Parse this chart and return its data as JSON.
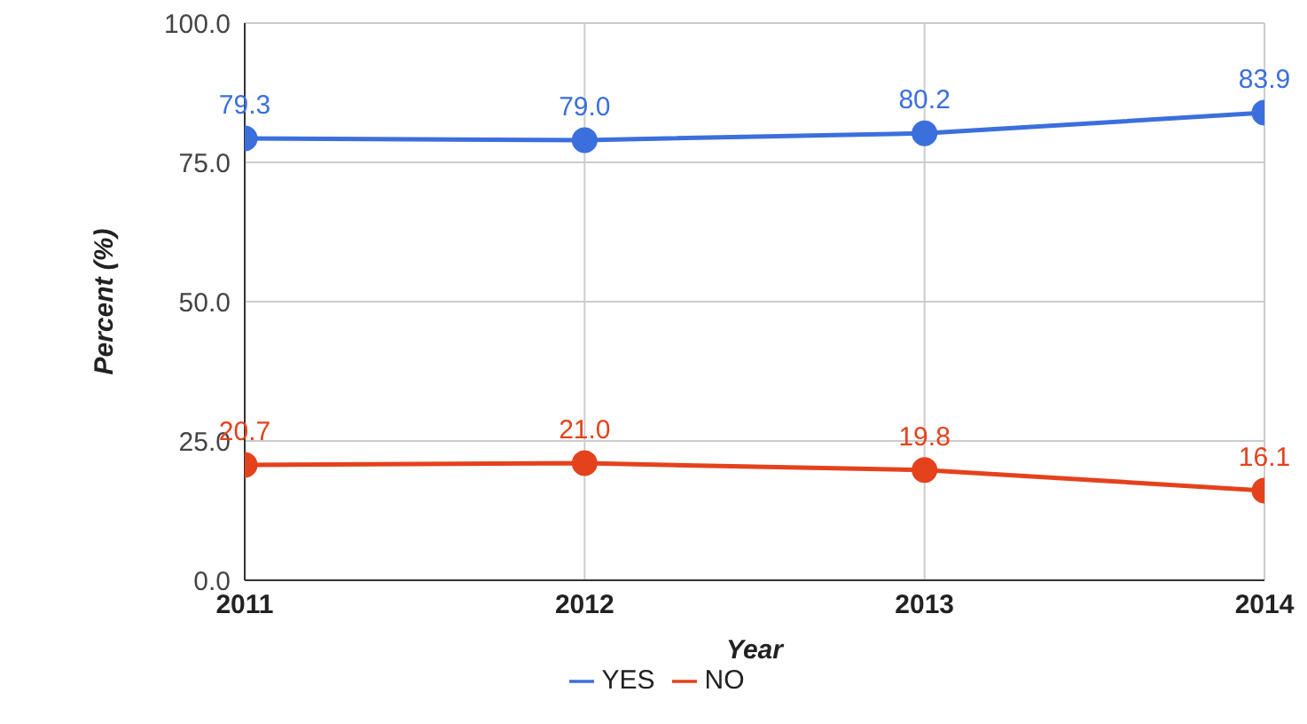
{
  "chart_data": {
    "type": "line",
    "xlabel": "Year",
    "ylabel": "Percent (%)",
    "x": [
      2011,
      2012,
      2013,
      2014
    ],
    "series": [
      {
        "name": "YES",
        "color": "#3b6fdc",
        "values": [
          79.3,
          79.0,
          80.2,
          83.9
        ],
        "value_labels": [
          "79.3",
          "79.0",
          "80.2",
          "83.9"
        ]
      },
      {
        "name": "NO",
        "color": "#e4421c",
        "values": [
          20.7,
          21.0,
          19.8,
          16.1
        ],
        "value_labels": [
          "20.7",
          "21.0",
          "19.8",
          "16.1"
        ]
      }
    ],
    "xlim": [
      2011,
      2014
    ],
    "xticks": [
      2011,
      2012,
      2013,
      2014
    ],
    "ylim": [
      0,
      100
    ],
    "yticks": [
      {
        "value": 0,
        "label": "0.0"
      },
      {
        "value": 25,
        "label": "25.0"
      },
      {
        "value": 50,
        "label": "50.0"
      },
      {
        "value": 75,
        "label": "75.0"
      },
      {
        "value": 100,
        "label": "100.0"
      }
    ],
    "grid": true,
    "legend": "bottom",
    "marker": "circle",
    "line_style": "solid"
  }
}
